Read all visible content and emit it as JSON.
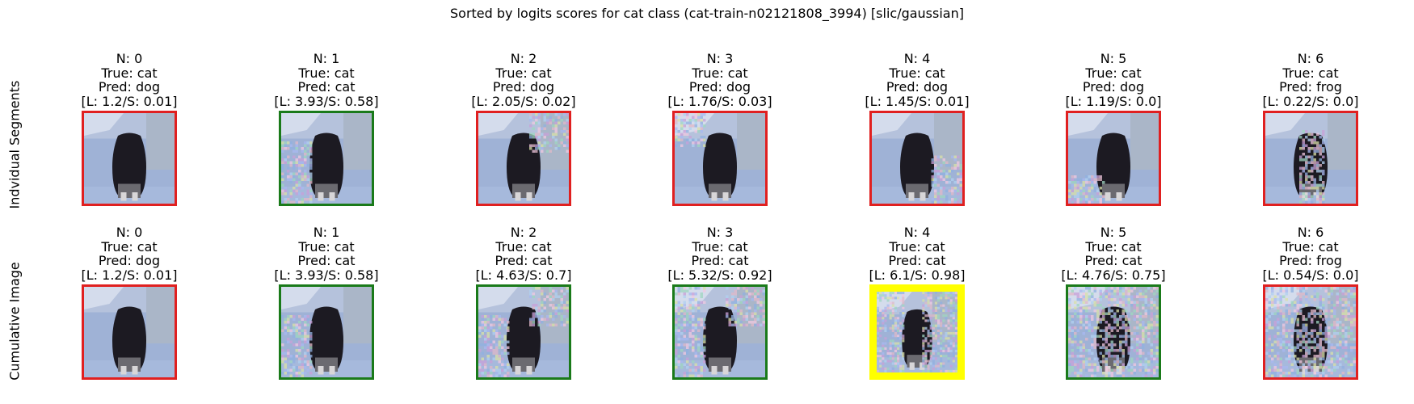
{
  "title": "Sorted by logits scores for cat class (cat-train-n02121808_3994) [slic/gaussian]",
  "row_labels": [
    "Indvidual Segments",
    "Cumulative Image"
  ],
  "colors": {
    "correct": "#1a7a1a",
    "incorrect": "#e02020",
    "best": "#ffff00"
  },
  "individual": [
    {
      "n": "N: 0",
      "true": "True: cat",
      "pred": "Pred: dog",
      "score": "[L: 1.2/S: 0.01]",
      "status": "incorrect"
    },
    {
      "n": "N: 1",
      "true": "True: cat",
      "pred": "Pred: cat",
      "score": "[L: 3.93/S: 0.58]",
      "status": "correct"
    },
    {
      "n": "N: 2",
      "true": "True: cat",
      "pred": "Pred: dog",
      "score": "[L: 2.05/S: 0.02]",
      "status": "incorrect"
    },
    {
      "n": "N: 3",
      "true": "True: cat",
      "pred": "Pred: dog",
      "score": "[L: 1.76/S: 0.03]",
      "status": "incorrect"
    },
    {
      "n": "N: 4",
      "true": "True: cat",
      "pred": "Pred: dog",
      "score": "[L: 1.45/S: 0.01]",
      "status": "incorrect"
    },
    {
      "n": "N: 5",
      "true": "True: cat",
      "pred": "Pred: dog",
      "score": "[L: 1.19/S: 0.0]",
      "status": "incorrect"
    },
    {
      "n": "N: 6",
      "true": "True: cat",
      "pred": "Pred: frog",
      "score": "[L: 0.22/S: 0.0]",
      "status": "incorrect"
    }
  ],
  "cumulative": [
    {
      "n": "N: 0",
      "true": "True: cat",
      "pred": "Pred: dog",
      "score": "[L: 1.2/S: 0.01]",
      "status": "incorrect"
    },
    {
      "n": "N: 1",
      "true": "True: cat",
      "pred": "Pred: cat",
      "score": "[L: 3.93/S: 0.58]",
      "status": "correct"
    },
    {
      "n": "N: 2",
      "true": "True: cat",
      "pred": "Pred: cat",
      "score": "[L: 4.63/S: 0.7]",
      "status": "correct"
    },
    {
      "n": "N: 3",
      "true": "True: cat",
      "pred": "Pred: cat",
      "score": "[L: 5.32/S: 0.92]",
      "status": "correct"
    },
    {
      "n": "N: 4",
      "true": "True: cat",
      "pred": "Pred: cat",
      "score": "[L: 6.1/S: 0.98]",
      "status": "best"
    },
    {
      "n": "N: 5",
      "true": "True: cat",
      "pred": "Pred: cat",
      "score": "[L: 4.76/S: 0.75]",
      "status": "correct"
    },
    {
      "n": "N: 6",
      "true": "True: cat",
      "pred": "Pred: frog",
      "score": "[L: 0.54/S: 0.0]",
      "status": "incorrect"
    }
  ]
}
